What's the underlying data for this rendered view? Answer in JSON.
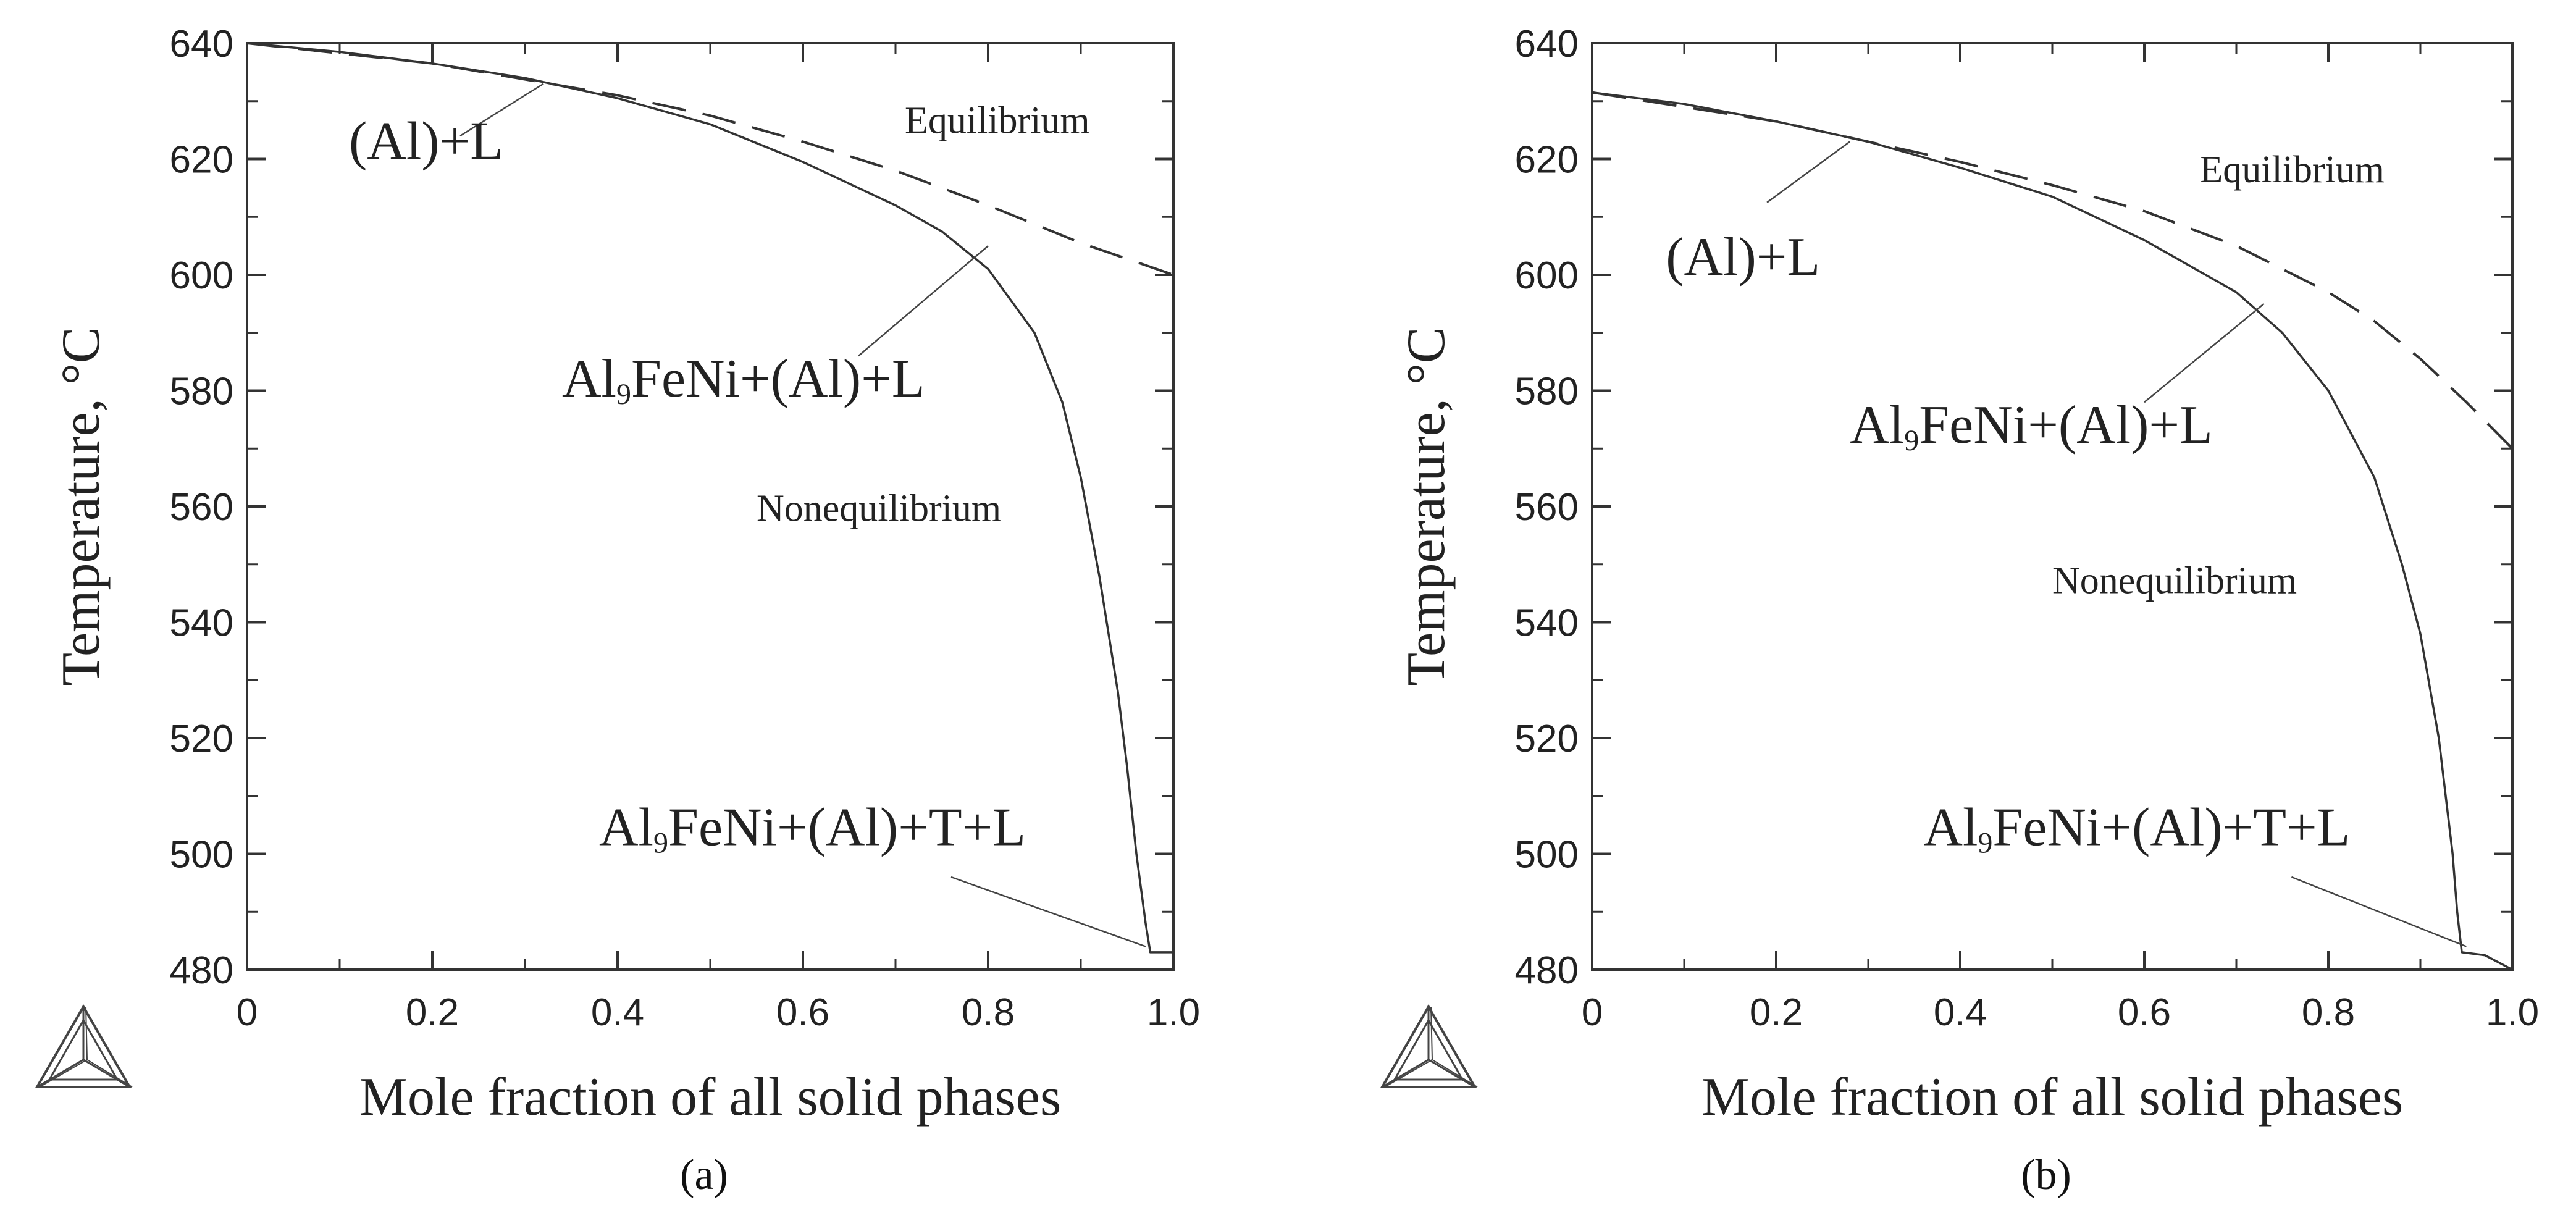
{
  "chart_data": [
    {
      "type": "line",
      "panel_label": "(a)",
      "xlabel": "Mole fraction of all solid phases",
      "ylabel": "Temperature, °C",
      "xlim": [
        0,
        1.0
      ],
      "ylim": [
        480,
        640
      ],
      "x_ticks": [
        "0",
        "0.2",
        "0.4",
        "0.6",
        "0.8",
        "1.0"
      ],
      "y_ticks": [
        "480",
        "500",
        "520",
        "540",
        "560",
        "580",
        "600",
        "620",
        "640"
      ],
      "grid": false,
      "series": [
        {
          "name": "Nonequilibrium",
          "style": "solid",
          "points": [
            [
              0,
              640
            ],
            [
              0.1,
              638.5
            ],
            [
              0.2,
              636.5
            ],
            [
              0.3,
              634
            ],
            [
              0.4,
              630.5
            ],
            [
              0.5,
              626
            ],
            [
              0.6,
              619.5
            ],
            [
              0.7,
              612
            ],
            [
              0.75,
              607.5
            ],
            [
              0.8,
              601
            ],
            [
              0.85,
              590
            ],
            [
              0.88,
              578
            ],
            [
              0.9,
              565
            ],
            [
              0.92,
              548
            ],
            [
              0.94,
              528
            ],
            [
              0.95,
              515
            ],
            [
              0.96,
              500
            ],
            [
              0.97,
              488
            ],
            [
              0.975,
              483
            ],
            [
              1.0,
              483
            ]
          ]
        },
        {
          "name": "Equilibrium",
          "style": "dashed",
          "points": [
            [
              0,
              640
            ],
            [
              0.2,
              636.5
            ],
            [
              0.4,
              631
            ],
            [
              0.5,
              627.5
            ],
            [
              0.6,
              623
            ],
            [
              0.7,
              618
            ],
            [
              0.8,
              612
            ],
            [
              0.9,
              605.5
            ],
            [
              1.0,
              600
            ]
          ]
        }
      ],
      "annotations": [
        {
          "text": "(Al)+L",
          "x": 0.11,
          "y": 620,
          "lx1": 0.23,
          "ly1": 624,
          "lx2": 0.32,
          "ly2": 633,
          "font": 88
        },
        {
          "text": "Equilibrium",
          "x": 0.71,
          "y": 624.5,
          "font": 62
        },
        {
          "text": "Al",
          "sub": "9",
          "rest": "FeNi+(Al)+L",
          "x": 0.34,
          "y": 579,
          "lx1": 0.66,
          "ly1": 586,
          "lx2": 0.8,
          "ly2": 605,
          "font": 88
        },
        {
          "text": "Nonequilibrium",
          "x": 0.55,
          "y": 557.5,
          "font": 62
        },
        {
          "text": "Al",
          "sub": "9",
          "rest": "FeNi+(Al)+T+L",
          "x": 0.38,
          "y": 501.5,
          "lx1": 0.76,
          "ly1": 496,
          "lx2": 0.97,
          "ly2": 484,
          "font": 88
        }
      ]
    },
    {
      "type": "line",
      "panel_label": "(b)",
      "xlabel": "Mole fraction of all solid phases",
      "ylabel": "Temperature, °C",
      "xlim": [
        0,
        1.0
      ],
      "ylim": [
        480,
        640
      ],
      "x_ticks": [
        "0",
        "0.2",
        "0.4",
        "0.6",
        "0.8",
        "1.0"
      ],
      "y_ticks": [
        "480",
        "500",
        "520",
        "540",
        "560",
        "580",
        "600",
        "620",
        "640"
      ],
      "grid": false,
      "series": [
        {
          "name": "Nonequilibrium",
          "style": "solid",
          "points": [
            [
              0,
              631.5
            ],
            [
              0.1,
              629.5
            ],
            [
              0.2,
              626.5
            ],
            [
              0.3,
              623
            ],
            [
              0.4,
              618.5
            ],
            [
              0.5,
              613.5
            ],
            [
              0.6,
              606
            ],
            [
              0.7,
              597
            ],
            [
              0.75,
              590
            ],
            [
              0.8,
              580
            ],
            [
              0.85,
              565
            ],
            [
              0.88,
              550
            ],
            [
              0.9,
              538
            ],
            [
              0.92,
              520
            ],
            [
              0.935,
              500
            ],
            [
              0.94,
              490
            ],
            [
              0.945,
              483
            ],
            [
              0.97,
              482.5
            ],
            [
              1.0,
              480
            ]
          ]
        },
        {
          "name": "Equilibrium",
          "style": "dashed",
          "points": [
            [
              0,
              631.5
            ],
            [
              0.2,
              626.5
            ],
            [
              0.4,
              619.5
            ],
            [
              0.5,
              615.5
            ],
            [
              0.6,
              611
            ],
            [
              0.7,
              605
            ],
            [
              0.8,
              597
            ],
            [
              0.85,
              592
            ],
            [
              0.9,
              585.5
            ],
            [
              0.95,
              578
            ],
            [
              1.0,
              570
            ]
          ]
        }
      ],
      "annotations": [
        {
          "text": "(Al)+L",
          "x": 0.08,
          "y": 600,
          "lx1": 0.19,
          "ly1": 612.5,
          "lx2": 0.28,
          "ly2": 623,
          "font": 88
        },
        {
          "text": "Equilibrium",
          "x": 0.66,
          "y": 616,
          "font": 62
        },
        {
          "text": "Al",
          "sub": "9",
          "rest": "FeNi+(Al)+L",
          "x": 0.28,
          "y": 571,
          "lx1": 0.6,
          "ly1": 578,
          "lx2": 0.73,
          "ly2": 595,
          "font": 88
        },
        {
          "text": "Nonequilibrium",
          "x": 0.5,
          "y": 545,
          "font": 62
        },
        {
          "text": "Al",
          "sub": "9",
          "rest": "FeNi+(Al)+T+L",
          "x": 0.36,
          "y": 501.5,
          "lx1": 0.76,
          "ly1": 496,
          "lx2": 0.95,
          "ly2": 484,
          "font": 88
        }
      ]
    }
  ]
}
